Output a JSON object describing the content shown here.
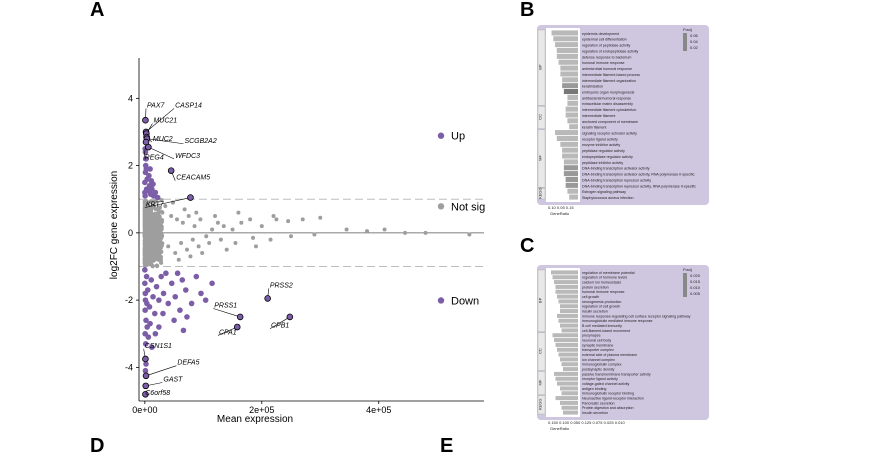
{
  "panels": {
    "a": "A",
    "b": "B",
    "c": "C",
    "d": "D",
    "e": "E"
  },
  "colors": {
    "sig": "#7b5ea7",
    "notsig": "#9e9e9e",
    "dash": "#bdbdbd",
    "enrichBg": "#cfc6e0",
    "bar": "#b9b9b9",
    "barDark": "#777777"
  },
  "chart_data": [
    {
      "type": "scatter",
      "title": "",
      "xlabel": "Mean expression",
      "ylabel": "log2FC gene expression",
      "xlim": [
        -10000,
        580000
      ],
      "ylim": [
        -5.0,
        5.2
      ],
      "xticks": [
        {
          "v": 0,
          "label": "0e+00"
        },
        {
          "v": 200000,
          "label": "2e+05"
        },
        {
          "v": 400000,
          "label": "4e+05"
        }
      ],
      "yticks": [
        -4,
        -2,
        0,
        2,
        4
      ],
      "thresholds": [
        1,
        -1
      ],
      "legend": [
        {
          "label": "Up",
          "class": "up",
          "y": 2.8
        },
        {
          "label": "Not sig",
          "class": "notsig",
          "y": 0.7
        },
        {
          "label": "Down",
          "class": "down",
          "y": -2.1
        }
      ],
      "labeled_points": [
        {
          "gene": "PAX7",
          "x": 1000,
          "y": 3.35,
          "lx": 2000,
          "ly": 3.7
        },
        {
          "gene": "CASP14",
          "x": 2000,
          "y": 3.0,
          "lx": 50000,
          "ly": 3.7
        },
        {
          "gene": "MUC21",
          "x": 2500,
          "y": 2.95,
          "lx": 13000,
          "ly": 3.25
        },
        {
          "gene": "MUC2",
          "x": 3000,
          "y": 2.85,
          "lx": 12000,
          "ly": 2.7
        },
        {
          "gene": "SCGB2A2",
          "x": 3500,
          "y": 2.8,
          "lx": 66000,
          "ly": 2.65
        },
        {
          "gene": "REG4",
          "x": 2000,
          "y": 2.7,
          "lx": -2000,
          "ly": 2.15
        },
        {
          "gene": "WFDC3",
          "x": 6000,
          "y": 2.55,
          "lx": 50000,
          "ly": 2.2
        },
        {
          "gene": "CEACAM5",
          "x": 45000,
          "y": 1.85,
          "lx": 52000,
          "ly": 1.55
        },
        {
          "gene": "KRT7",
          "x": 78000,
          "y": 1.05,
          "lx": 0,
          "ly": 0.75
        },
        {
          "gene": "PRSS2",
          "x": 210000,
          "y": -1.95,
          "lx": 212000,
          "ly": -1.65
        },
        {
          "gene": "PRSS1",
          "x": 163000,
          "y": -2.5,
          "lx": 117000,
          "ly": -2.25
        },
        {
          "gene": "CPB1",
          "x": 248000,
          "y": -2.5,
          "lx": 214000,
          "ly": -2.85
        },
        {
          "gene": "CPA1",
          "x": 158000,
          "y": -2.8,
          "lx": 125000,
          "ly": -3.05
        },
        {
          "gene": "CSN1S1",
          "x": 1000,
          "y": -3.75,
          "lx": -2000,
          "ly": -3.45
        },
        {
          "gene": "DEFA5",
          "x": 2000,
          "y": -4.25,
          "lx": 54000,
          "ly": -3.95
        },
        {
          "gene": "GAST",
          "x": 1500,
          "y": -4.55,
          "lx": 30000,
          "ly": -4.45
        },
        {
          "gene": "C6orf58",
          "x": 1000,
          "y": -4.8,
          "lx": -1000,
          "ly": -4.85
        }
      ],
      "up_points": [
        [
          0,
          1.2
        ],
        [
          0,
          1.5
        ],
        [
          1000,
          1.8
        ],
        [
          2000,
          2.2
        ],
        [
          500,
          2.5
        ],
        [
          3000,
          1.3
        ],
        [
          4000,
          1.6
        ],
        [
          6000,
          1.25
        ],
        [
          8000,
          1.4
        ],
        [
          10000,
          1.15
        ],
        [
          12000,
          1.3
        ],
        [
          15000,
          1.1
        ],
        [
          18000,
          1.2
        ],
        [
          22000,
          1.05
        ],
        [
          1500,
          2.0
        ],
        [
          2500,
          1.9
        ],
        [
          500,
          1.1
        ],
        [
          7000,
          1.7
        ],
        [
          9000,
          1.9
        ],
        [
          11000,
          1.55
        ],
        [
          1000,
          2.4
        ],
        [
          14000,
          1.45
        ]
      ],
      "down_points": [
        [
          0,
          -1.1
        ],
        [
          0,
          -1.5
        ],
        [
          1000,
          -2.0
        ],
        [
          2000,
          -2.6
        ],
        [
          500,
          -3.0
        ],
        [
          1500,
          -3.3
        ],
        [
          3000,
          -1.3
        ],
        [
          5000,
          -1.7
        ],
        [
          8000,
          -2.2
        ],
        [
          11000,
          -1.4
        ],
        [
          14000,
          -1.9
        ],
        [
          17000,
          -2.4
        ],
        [
          20000,
          -1.6
        ],
        [
          24000,
          -2.0
        ],
        [
          28000,
          -1.3
        ],
        [
          32000,
          -1.8
        ],
        [
          36000,
          -1.2
        ],
        [
          40000,
          -2.1
        ],
        [
          46000,
          -1.5
        ],
        [
          52000,
          -1.9
        ],
        [
          60000,
          -2.3
        ],
        [
          64000,
          -1.4
        ],
        [
          70000,
          -1.7
        ],
        [
          80000,
          -2.1
        ],
        [
          88000,
          -1.3
        ],
        [
          96000,
          -1.8
        ],
        [
          4000,
          -2.8
        ],
        [
          6000,
          -3.1
        ],
        [
          9000,
          -2.7
        ],
        [
          12000,
          -3.4
        ],
        [
          2000,
          -3.9
        ],
        [
          1000,
          -4.1
        ],
        [
          500,
          -2.3
        ],
        [
          24000,
          -2.8
        ],
        [
          31000,
          -2.4
        ],
        [
          66000,
          -2.9
        ],
        [
          72000,
          -2.5
        ],
        [
          104000,
          -2.0
        ],
        [
          115000,
          -1.5
        ],
        [
          50000,
          -2.6
        ],
        [
          56000,
          -1.2
        ],
        [
          18000,
          -3.0
        ],
        [
          700,
          -1.8
        ],
        [
          3500,
          -2.1
        ]
      ],
      "notsig_points": [
        [
          30000,
          0.6
        ],
        [
          45000,
          0.5
        ],
        [
          55000,
          0.4
        ],
        [
          65000,
          0.3
        ],
        [
          75000,
          0.5
        ],
        [
          85000,
          0.2
        ],
        [
          95000,
          0.4
        ],
        [
          105000,
          -0.1
        ],
        [
          115000,
          0.1
        ],
        [
          125000,
          0.3
        ],
        [
          135000,
          0.2
        ],
        [
          150000,
          0.1
        ],
        [
          165000,
          0.3
        ],
        [
          180000,
          0.4
        ],
        [
          200000,
          0.2
        ],
        [
          225000,
          0.4
        ],
        [
          245000,
          0.35
        ],
        [
          270000,
          0.4
        ],
        [
          300000,
          0.45
        ],
        [
          345000,
          0.1
        ],
        [
          380000,
          0.05
        ],
        [
          410000,
          0.1
        ],
        [
          445000,
          0.0
        ],
        [
          480000,
          0.0
        ],
        [
          555000,
          -0.05
        ],
        [
          40000,
          -0.4
        ],
        [
          52000,
          -0.6
        ],
        [
          62000,
          -0.3
        ],
        [
          72000,
          -0.5
        ],
        [
          82000,
          -0.2
        ],
        [
          92000,
          -0.4
        ],
        [
          110000,
          -0.3
        ],
        [
          130000,
          -0.2
        ],
        [
          155000,
          -0.3
        ],
        [
          185000,
          -0.15
        ],
        [
          215000,
          -0.2
        ],
        [
          250000,
          -0.1
        ],
        [
          290000,
          -0.05
        ],
        [
          35000,
          0.8
        ],
        [
          48000,
          0.9
        ],
        [
          58000,
          -0.8
        ],
        [
          68000,
          0.7
        ],
        [
          78000,
          -0.7
        ],
        [
          88000,
          0.6
        ],
        [
          98000,
          -0.6
        ],
        [
          120000,
          0.5
        ],
        [
          140000,
          -0.5
        ],
        [
          160000,
          0.6
        ],
        [
          190000,
          -0.4
        ],
        [
          220000,
          0.5
        ]
      ]
    },
    {
      "type": "bar",
      "title": "",
      "xlabel": "GeneRatio",
      "ylabel": "",
      "xlim": [
        0,
        0.17
      ],
      "xticks": [
        "0.10",
        "0.05",
        "0.15"
      ],
      "legend_title": "P.adj",
      "legend_values": [
        "0.06",
        "0.04",
        "0.02"
      ],
      "groups": [
        "BP",
        "CC",
        "MF",
        "KEGG"
      ],
      "categories": [
        "epidermis development",
        "epidermal cell differentiation",
        "regulation of peptidase activity",
        "regulation of endopeptidase activity",
        "defense response to bacterium",
        "humoral immune response",
        "antimicrobial humoral response",
        "intermediate filament-based process",
        "intermediate filament organization",
        "keratinization",
        "embryonic organ morphogenesis",
        "antibacterial humoral response",
        "extracellular matrix disassembly",
        "intermediate filament cytoskeleton",
        "intermediate filament",
        "anchored component of membrane",
        "keratin filament",
        "signaling receptor activator activity",
        "receptor ligand activity",
        "enzyme inhibitor activity",
        "peptidase regulator activity",
        "endopeptidase regulator activity",
        "peptidase inhibitor activity",
        "DNA-binding transcription activator activity",
        "DNA-binding transcription activator activity, RNA polymerase II-specific",
        "DNA-binding transcription repressor activity",
        "DNA-binding transcription repressor activity, RNA polymerase II-specific",
        "Estrogen signaling pathway",
        "Staphylococcus aureus infection"
      ],
      "values": [
        0.15,
        0.14,
        0.13,
        0.12,
        0.12,
        0.11,
        0.1,
        0.1,
        0.09,
        0.09,
        0.08,
        0.06,
        0.06,
        0.07,
        0.07,
        0.06,
        0.05,
        0.13,
        0.12,
        0.1,
        0.09,
        0.09,
        0.08,
        0.08,
        0.08,
        0.07,
        0.07,
        0.06,
        0.05
      ],
      "shade": [
        0,
        0,
        0,
        0,
        0,
        0,
        0,
        0,
        0,
        1,
        2,
        0,
        0,
        0,
        0,
        0,
        0,
        0,
        0,
        0,
        0,
        0,
        0,
        1,
        1,
        1,
        1,
        0,
        0
      ]
    },
    {
      "type": "bar",
      "title": "",
      "xlabel": "GeneRatio",
      "ylabel": "",
      "xlim": [
        0,
        0.2
      ],
      "xticks": [
        "0.150",
        "0.100",
        "0.050",
        "0.125",
        "0.075",
        "0.025",
        "0.010"
      ],
      "legend_title": "P.adj",
      "legend_values": [
        "0.020",
        "0.015",
        "0.010",
        "0.005"
      ],
      "groups": [
        "BP",
        "CC",
        "MF",
        "KEGG"
      ],
      "categories": [
        "regulation of membrane potential",
        "regulation of hormone levels",
        "calcium ion homeostasis",
        "protein secretion",
        "humoral immune response",
        "cell growth",
        "neurogenesis production",
        "regulation of cell growth",
        "insulin secretion",
        "immune response-regulating cell surface receptor signaling pathway",
        "immunoglobulin mediated immune response",
        "B cell mediated immunity",
        "cell-filament-based movement",
        "presynapse",
        "neuronal cell body",
        "synaptic membrane",
        "transporter complex",
        "external side of plasma membrane",
        "ion channel complex",
        "immunoglobulin complex",
        "postsynaptic density",
        "passive transmembrane transporter activity",
        "receptor ligand activity",
        "voltage-gated channel activity",
        "antigen binding",
        "immunoglobulin receptor binding",
        "Neuroactive ligand-receptor interaction",
        "Pancreatic secretion",
        "Protein digestion and absorption",
        "Insulin secretion"
      ],
      "values": [
        0.18,
        0.17,
        0.16,
        0.15,
        0.15,
        0.14,
        0.13,
        0.12,
        0.12,
        0.14,
        0.13,
        0.12,
        0.11,
        0.17,
        0.16,
        0.15,
        0.14,
        0.13,
        0.12,
        0.11,
        0.1,
        0.16,
        0.15,
        0.14,
        0.12,
        0.11,
        0.15,
        0.12,
        0.11,
        0.1
      ],
      "shade": [
        0,
        0,
        0,
        0,
        0,
        0,
        0,
        0,
        0,
        0,
        0,
        0,
        0,
        0,
        0,
        0,
        0,
        0,
        0,
        0,
        0,
        0,
        0,
        0,
        0,
        0,
        0,
        0,
        0,
        0
      ]
    }
  ]
}
